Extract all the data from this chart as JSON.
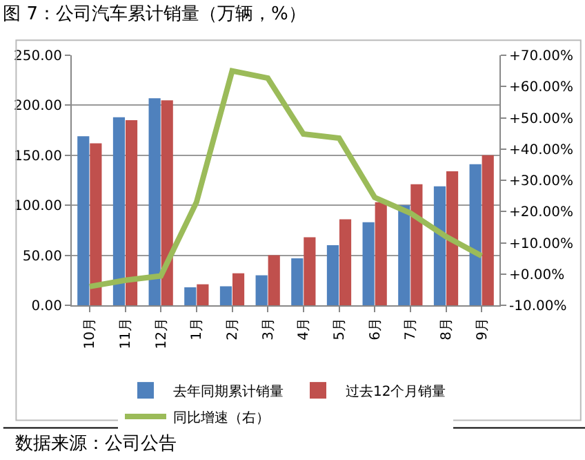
{
  "chart_data": {
    "type": "bar",
    "title": "图 7：公司汽车累计销量（万辆，%）",
    "categories": [
      "10月",
      "11月",
      "12月",
      "1月",
      "2月",
      "3月",
      "4月",
      "5月",
      "6月",
      "7月",
      "8月",
      "9月"
    ],
    "series": [
      {
        "name": "去年同期累计销量",
        "color": "#4f81bd",
        "values": [
          169,
          188,
          207,
          18,
          19,
          30,
          47,
          60,
          83,
          100,
          119,
          141
        ]
      },
      {
        "name": "过去12个月销量",
        "color": "#c0504d",
        "values": [
          162,
          185,
          205,
          21,
          32,
          50,
          68,
          86,
          103,
          121,
          134,
          150
        ]
      },
      {
        "name": "同比增速（右）",
        "type": "line",
        "axis": "y2",
        "color": "#9bbb59",
        "values": [
          -4,
          -2,
          -0.6,
          23,
          65,
          62.7,
          44.8,
          43.5,
          24.5,
          19.5,
          12,
          5.8
        ]
      }
    ],
    "ylim": [
      0,
      250
    ],
    "yticks": [
      {
        "value": 0,
        "label": "0.00"
      },
      {
        "value": 50,
        "label": "50.00"
      },
      {
        "value": 100,
        "label": "100.00"
      },
      {
        "value": 150,
        "label": "150.00"
      },
      {
        "value": 200,
        "label": "200.00"
      },
      {
        "value": 250,
        "label": "250.00"
      }
    ],
    "y2lim": [
      -10,
      70
    ],
    "y2ticks": [
      {
        "value": -10,
        "label": "-10.00%"
      },
      {
        "value": 0,
        "label": "+0.00%"
      },
      {
        "value": 10,
        "label": "+10.00%"
      },
      {
        "value": 20,
        "label": "+20.00%"
      },
      {
        "value": 30,
        "label": "+30.00%"
      },
      {
        "value": 40,
        "label": "+40.00%"
      },
      {
        "value": 50,
        "label": "+50.00%"
      },
      {
        "value": 60,
        "label": "+60.00%"
      },
      {
        "value": 70,
        "label": "+70.00%"
      }
    ],
    "grid": "y",
    "legend": "bottom",
    "marker": "none",
    "line_style": "solid",
    "annotations": [
      "数据来源：公司公告"
    ]
  }
}
